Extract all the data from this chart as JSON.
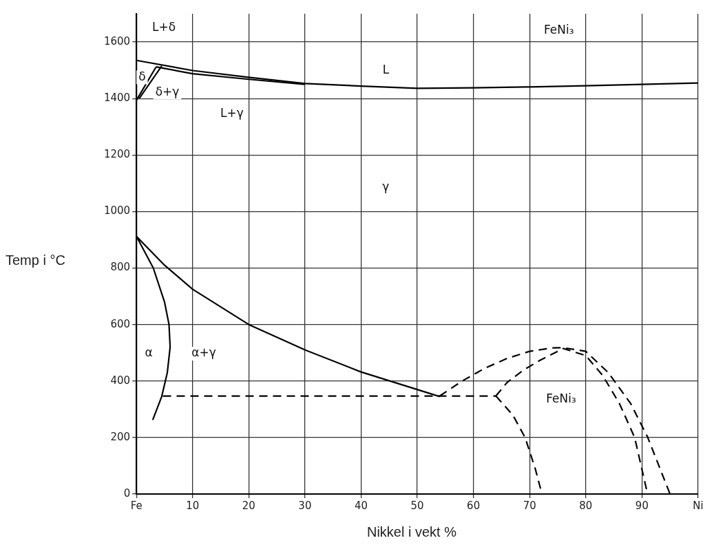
{
  "chart_data": {
    "type": "line",
    "xlabel": "Nikkel i vekt %",
    "ylabel": "Temp i °C",
    "xlim": [
      0,
      100
    ],
    "ylim": [
      0,
      1700
    ],
    "xticks": [
      {
        "value": 0,
        "label": "Fe"
      },
      10,
      20,
      30,
      40,
      50,
      60,
      70,
      80,
      90,
      {
        "value": 100,
        "label": "Ni"
      }
    ],
    "yticks": [
      0,
      200,
      400,
      600,
      800,
      1000,
      1200,
      1400,
      1600
    ],
    "grid": true,
    "marker": "none",
    "legend": false,
    "series": [
      {
        "color": "#000000",
        "x": [
          0,
          10,
          20,
          30,
          40,
          50,
          60,
          70,
          80,
          90,
          100
        ],
        "values": [
          1535,
          1499,
          1475,
          1453,
          1444,
          1436,
          1438,
          1441,
          1445,
          1450,
          1455
        ]
      },
      {
        "color": "#000000",
        "x": [
          3.5,
          10,
          20,
          30
        ],
        "values": [
          1512,
          1488,
          1468,
          1450
        ]
      },
      {
        "color": "#000000",
        "x": [
          0,
          3.5
        ],
        "values": [
          1394,
          1512
        ]
      },
      {
        "color": "#000000",
        "x": [
          0.5,
          4.5
        ],
        "values": [
          1400,
          1515
        ]
      },
      {
        "color": "#000000",
        "x": [
          0,
          5,
          10,
          20,
          30,
          40,
          54
        ],
        "values": [
          912,
          810,
          725,
          600,
          510,
          432,
          345
        ]
      },
      {
        "color": "#000000",
        "x": [
          0,
          3,
          5,
          5.8,
          6,
          5.5,
          4.5,
          2.9
        ],
        "values": [
          912,
          800,
          680,
          600,
          520,
          430,
          345,
          262
        ]
      },
      {
        "color": "#000000",
        "line_style": "dashed",
        "x": [
          4.7,
          64
        ],
        "values": [
          347,
          347
        ]
      },
      {
        "color": "#000000",
        "line_style": "dashed",
        "x": [
          54,
          58,
          62,
          66,
          70,
          74,
          76,
          80,
          84,
          88,
          91,
          95
        ],
        "values": [
          347,
          400,
          445,
          480,
          505,
          517,
          518,
          505,
          430,
          320,
          202,
          0
        ]
      },
      {
        "color": "#000000",
        "line_style": "dashed",
        "x": [
          64,
          66,
          69,
          72,
          76,
          80,
          83,
          86,
          88.7,
          91
        ],
        "values": [
          347,
          395,
          440,
          475,
          515,
          490,
          420,
          320,
          200,
          0
        ]
      },
      {
        "color": "#000000",
        "line_style": "dashed",
        "x": [
          64,
          67,
          69.2,
          71,
          72.2
        ],
        "values": [
          347,
          280,
          200,
          90,
          0
        ]
      }
    ],
    "annotations": [
      {
        "text": "L",
        "x": 44.4,
        "y": 1500
      },
      {
        "text": "γ",
        "x": 44.4,
        "y": 1086
      },
      {
        "text": "α",
        "x": 2.2,
        "y": 497
      },
      {
        "text": "α+γ",
        "x": 12,
        "y": 497
      },
      "FeNi₃",
      {
        "text": "L+δ",
        "x": 4.9,
        "y": 1650
      },
      {
        "text": "δ",
        "x": 1,
        "y": 1475
      },
      {
        "text": "δ+γ",
        "x": 5.5,
        "y": 1422
      },
      {
        "text": "L+γ",
        "x": 17,
        "y": 1345
      },
      "FeNi₃"
    ]
  }
}
